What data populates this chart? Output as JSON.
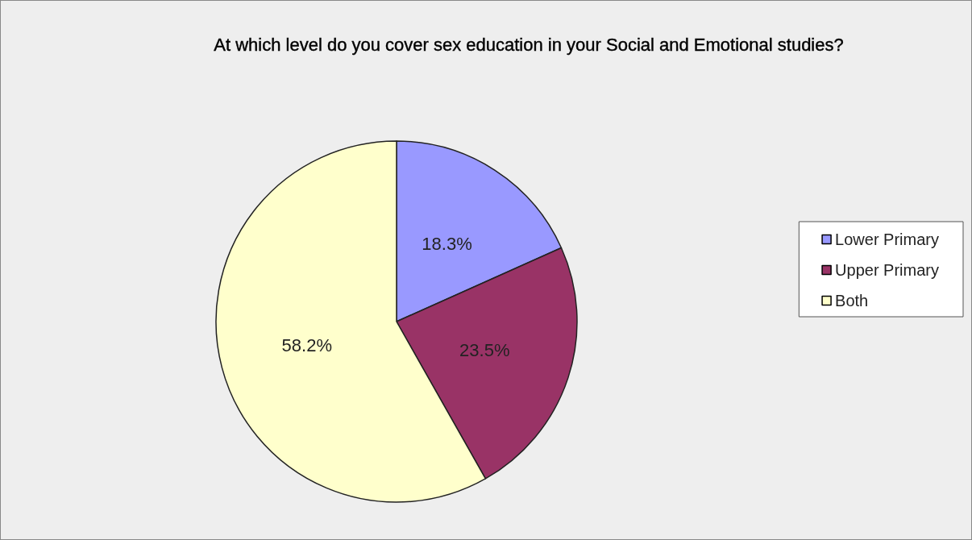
{
  "chart_data": {
    "type": "pie",
    "title": "At which level do you cover sex education in your Social and Emotional studies?",
    "categories": [
      "Lower Primary",
      "Upper Primary",
      "Both"
    ],
    "values": [
      18.3,
      23.5,
      58.2
    ],
    "colors": [
      "#9999ff",
      "#993366",
      "#ffffcc"
    ],
    "value_labels": [
      "18.3%",
      "23.5%",
      "58.2%"
    ],
    "legend": "right"
  }
}
